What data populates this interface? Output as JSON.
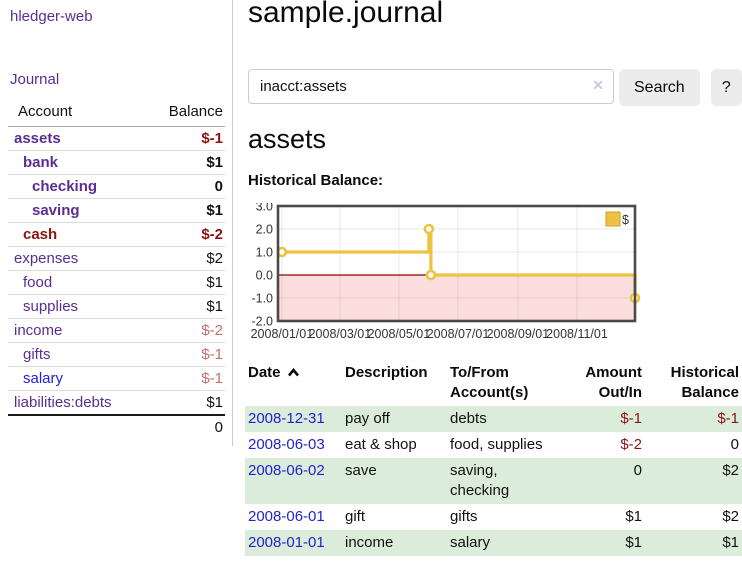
{
  "app": {
    "brand": "hledger-web"
  },
  "sidebar": {
    "journal_label": "Journal",
    "accounts_table": {
      "headers": {
        "account": "Account",
        "balance": "Balance"
      },
      "rows": [
        {
          "name": "assets",
          "depth": 1,
          "bold": true,
          "name_type": "visited",
          "balance": "$-1",
          "balance_type": "neg-strong"
        },
        {
          "name": "bank",
          "depth": 2,
          "bold": true,
          "name_type": "visited",
          "balance": "$1",
          "balance_type": "pos"
        },
        {
          "name": "checking",
          "depth": 3,
          "bold": true,
          "name_type": "visited",
          "balance": "0",
          "balance_type": "pos"
        },
        {
          "name": "saving",
          "depth": 3,
          "bold": true,
          "name_type": "visited",
          "balance": "$1",
          "balance_type": "pos"
        },
        {
          "name": "cash",
          "depth": 2,
          "bold": true,
          "name_type": "negative",
          "balance": "$-2",
          "balance_type": "neg-strong"
        },
        {
          "name": "expenses",
          "depth": 1,
          "bold": false,
          "name_type": "visited",
          "balance": "$2",
          "balance_type": "pos"
        },
        {
          "name": "food",
          "depth": 2,
          "bold": false,
          "name_type": "visited",
          "balance": "$1",
          "balance_type": "pos"
        },
        {
          "name": "supplies",
          "depth": 2,
          "bold": false,
          "name_type": "visited",
          "balance": "$1",
          "balance_type": "pos"
        },
        {
          "name": "income",
          "depth": 1,
          "bold": false,
          "name_type": "visited",
          "balance": "$-2",
          "balance_type": "neg-soft"
        },
        {
          "name": "gifts",
          "depth": 2,
          "bold": false,
          "name_type": "visited",
          "balance": "$-1",
          "balance_type": "neg-soft"
        },
        {
          "name": "salary",
          "depth": 2,
          "bold": false,
          "name_type": "unvisited",
          "balance": "$-1",
          "balance_type": "neg-soft"
        },
        {
          "name": "liabilities:debts",
          "depth": 1,
          "bold": false,
          "name_type": "visited",
          "balance": "$1",
          "balance_type": "pos"
        }
      ],
      "total": "0"
    }
  },
  "main": {
    "title": "sample.journal",
    "search": {
      "value": "inacct:assets",
      "clear_icon": "✕",
      "button_label": "Search",
      "help_label": "?"
    },
    "account_heading": "assets"
  },
  "chart_data": {
    "type": "line",
    "style": "steps",
    "title": "Historical Balance:",
    "series": [
      {
        "name": "$",
        "color": "#edc240",
        "point_border": "#c9a227",
        "points": [
          {
            "date": "2008-01-01",
            "value": 1
          },
          {
            "date": "2008-06-01",
            "value": 2
          },
          {
            "date": "2008-06-03",
            "value": 0
          },
          {
            "date": "2008-12-31",
            "value": -1
          }
        ]
      }
    ],
    "x_ticks": [
      "2008/01/01",
      "2008/03/01",
      "2008/05/01",
      "2008/07/01",
      "2008/09/01",
      "2008/11/01"
    ],
    "y_ticks": [
      3.0,
      2.0,
      1.0,
      0.0,
      -1.0,
      -2.0
    ],
    "ylim": [
      -2,
      3
    ],
    "x_domain": [
      "2007-12-28",
      "2008-12-31"
    ],
    "grid": true,
    "negative_region_color": "#fbdddd",
    "zero_line_color": "#8b0000",
    "legend": {
      "label": "$",
      "position": "top-right"
    }
  },
  "transactions": {
    "headers": {
      "date": "Date",
      "description": "Description",
      "tofrom": "To/From Account(s)",
      "amount": "Amount Out/In",
      "balance": "Historical Balance"
    },
    "rows": [
      {
        "date": "2008-12-31",
        "description": "pay off",
        "accounts": "debts",
        "amount": "$-1",
        "balance": "$-1"
      },
      {
        "date": "2008-06-03",
        "description": "eat & shop",
        "accounts": "food, supplies",
        "amount": "$-2",
        "balance": "0"
      },
      {
        "date": "2008-06-02",
        "description": "save",
        "accounts": "saving, checking",
        "amount": "0",
        "balance": "$2"
      },
      {
        "date": "2008-06-01",
        "description": "gift",
        "accounts": "gifts",
        "amount": "$1",
        "balance": "$2"
      },
      {
        "date": "2008-01-01",
        "description": "income",
        "accounts": "salary",
        "amount": "$1",
        "balance": "$1"
      }
    ]
  },
  "colors": {
    "link_purple": "#5c2d91",
    "link_blue": "#2323cc",
    "negative_strong": "#8e1212",
    "negative_soft": "#c0716f",
    "row_stripe_green": "#dcecdb",
    "chart_gold": "#edc240",
    "chart_negative_bg": "#fbdddd",
    "chart_zero_line": "#8b0000",
    "button_gray": "#ececec"
  }
}
